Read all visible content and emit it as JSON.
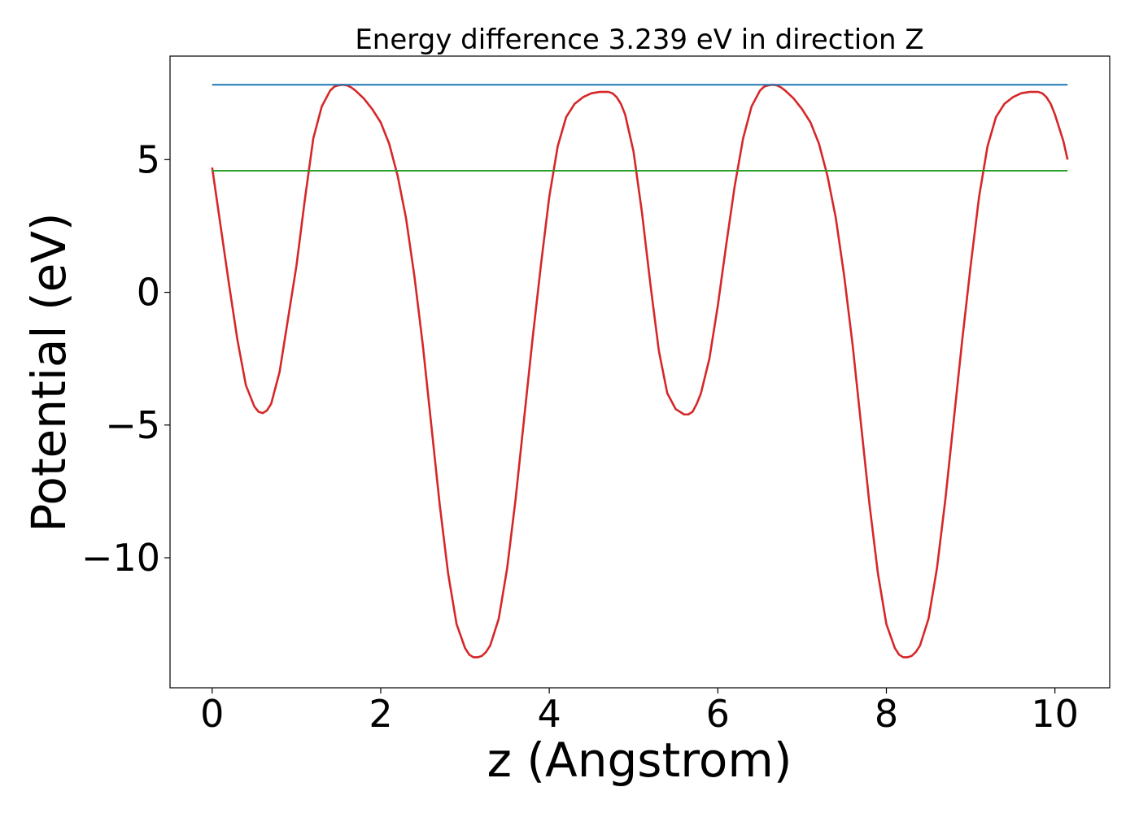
{
  "chart_data": {
    "type": "line",
    "title": "Energy difference 3.239 eV in direction Z",
    "xlabel": "z (Angstrom)",
    "ylabel": "Potential (eV)",
    "xlim": [
      -0.5,
      10.65
    ],
    "ylim": [
      -14.9,
      8.9
    ],
    "xticks": [
      0,
      2,
      4,
      6,
      8,
      10
    ],
    "xtick_labels": [
      "0",
      "2",
      "4",
      "6",
      "8",
      "10"
    ],
    "yticks": [
      -10,
      -5,
      0,
      5
    ],
    "ytick_labels": [
      "−10",
      "−5",
      "0",
      "5"
    ],
    "grid": false,
    "series": [
      {
        "color": "#d62728",
        "style": "solid",
        "x": [
          0,
          0.1,
          0.2,
          0.3,
          0.4,
          0.5,
          0.55,
          0.6,
          0.65,
          0.7,
          0.8,
          0.9,
          1.0,
          1.1,
          1.2,
          1.3,
          1.4,
          1.45,
          1.5,
          1.55,
          1.6,
          1.65,
          1.7,
          1.75,
          1.8,
          1.9,
          2.0,
          2.1,
          2.2,
          2.3,
          2.4,
          2.5,
          2.6,
          2.7,
          2.8,
          2.9,
          3.0,
          3.05,
          3.1,
          3.15,
          3.2,
          3.25,
          3.3,
          3.4,
          3.5,
          3.6,
          3.7,
          3.8,
          3.9,
          4.0,
          4.1,
          4.2,
          4.3,
          4.4,
          4.5,
          4.6,
          4.7,
          4.75,
          4.8,
          4.85,
          4.9,
          5.0,
          5.1,
          5.2,
          5.3,
          5.4,
          5.5,
          5.6,
          5.65,
          5.7,
          5.75,
          5.8,
          5.9,
          6.0,
          6.1,
          6.2,
          6.3,
          6.4,
          6.5,
          6.55,
          6.6,
          6.65,
          6.7,
          6.75,
          6.8,
          6.85,
          6.9,
          7.0,
          7.1,
          7.2,
          7.3,
          7.4,
          7.5,
          7.6,
          7.7,
          7.8,
          7.9,
          8.0,
          8.1,
          8.15,
          8.2,
          8.25,
          8.3,
          8.35,
          8.4,
          8.5,
          8.6,
          8.7,
          8.8,
          8.9,
          9.0,
          9.1,
          9.2,
          9.3,
          9.4,
          9.5,
          9.6,
          9.7,
          9.8,
          9.85,
          9.9,
          9.95,
          10.0,
          10.05,
          10.1,
          10.15
        ],
        "y": [
          4.7,
          2.5,
          0.3,
          -1.8,
          -3.5,
          -4.3,
          -4.5,
          -4.55,
          -4.45,
          -4.2,
          -3.0,
          -1.0,
          1.0,
          3.5,
          5.8,
          7.0,
          7.6,
          7.75,
          7.8,
          7.82,
          7.8,
          7.72,
          7.6,
          7.45,
          7.3,
          6.9,
          6.4,
          5.6,
          4.4,
          2.8,
          0.6,
          -2.0,
          -5.0,
          -8.0,
          -10.6,
          -12.5,
          -13.4,
          -13.65,
          -13.75,
          -13.75,
          -13.7,
          -13.55,
          -13.3,
          -12.3,
          -10.4,
          -7.8,
          -4.8,
          -1.8,
          1.0,
          3.6,
          5.5,
          6.6,
          7.1,
          7.35,
          7.5,
          7.55,
          7.55,
          7.5,
          7.35,
          7.1,
          6.7,
          5.3,
          3.0,
          0.3,
          -2.2,
          -3.8,
          -4.4,
          -4.6,
          -4.6,
          -4.5,
          -4.2,
          -3.8,
          -2.5,
          -0.5,
          1.8,
          4.0,
          5.8,
          7.0,
          7.6,
          7.75,
          7.8,
          7.82,
          7.8,
          7.72,
          7.6,
          7.45,
          7.3,
          6.9,
          6.4,
          5.6,
          4.4,
          2.8,
          0.6,
          -2.0,
          -5.0,
          -8.0,
          -10.6,
          -12.5,
          -13.4,
          -13.65,
          -13.75,
          -13.75,
          -13.7,
          -13.55,
          -13.3,
          -12.3,
          -10.4,
          -7.8,
          -4.8,
          -1.8,
          1.0,
          3.6,
          5.5,
          6.6,
          7.1,
          7.35,
          7.5,
          7.55,
          7.55,
          7.5,
          7.35,
          7.1,
          6.7,
          6.2,
          5.7,
          5.0
        ]
      },
      {
        "color": "#1f77b4",
        "style": "solid",
        "x": [
          0,
          10.15
        ],
        "y": [
          7.82,
          7.82
        ]
      },
      {
        "color": "#2ca02c",
        "style": "solid",
        "x": [
          0,
          10.15
        ],
        "y": [
          4.58,
          4.58
        ]
      }
    ]
  }
}
